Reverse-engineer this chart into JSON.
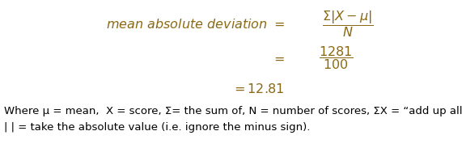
{
  "bg_color": "#ffffff",
  "formula_color": "#8B6914",
  "text_color": "#000000",
  "footnote1": "Where μ = mean,  X = score, Σ= the sum of, N = number of scores, ΣX = “add up all the scores”,",
  "footnote2": "| | = take the absolute value (i.e. ignore the minus sign).",
  "fig_width": 5.71,
  "fig_height": 1.83,
  "dpi": 100
}
